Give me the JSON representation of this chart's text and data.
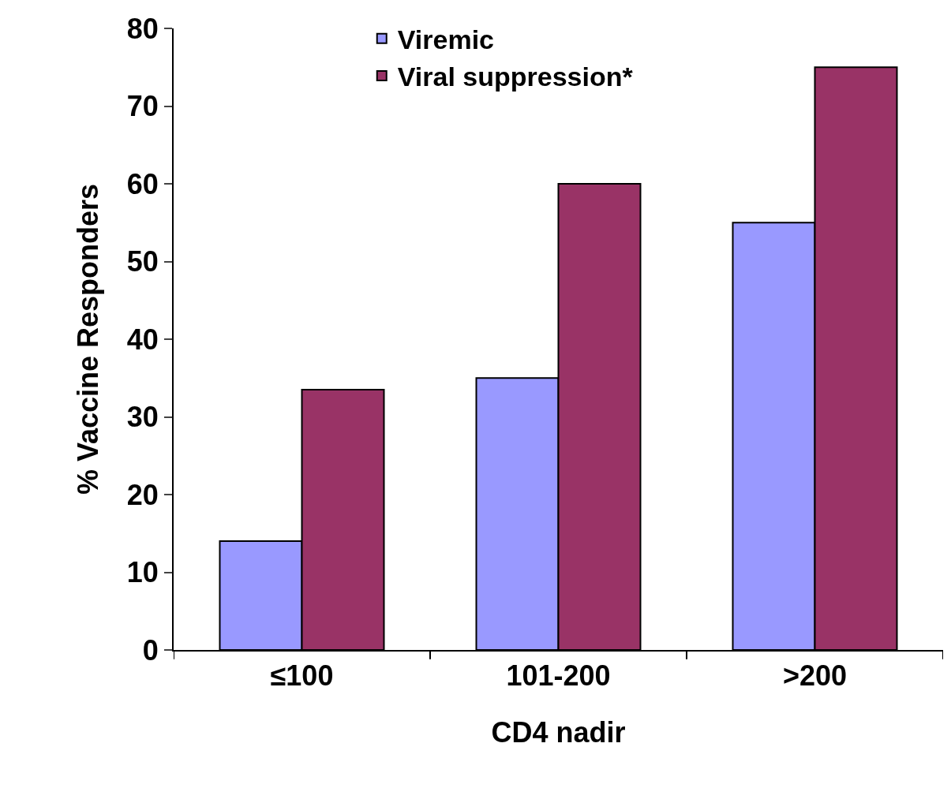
{
  "chart_data": {
    "type": "bar",
    "xlabel": "CD4 nadir",
    "ylabel": "% Vaccine Responders",
    "categories": [
      "≤100",
      "101-200",
      ">200"
    ],
    "series": [
      {
        "name": "Viremic",
        "color": "#9999ff",
        "values": [
          14,
          35,
          55
        ]
      },
      {
        "name": "Viral suppression*",
        "color": "#993366",
        "values": [
          33.5,
          60,
          75
        ]
      }
    ],
    "ylim": [
      0,
      80
    ],
    "yticks": [
      0,
      10,
      20,
      30,
      40,
      50,
      60,
      70,
      80
    ],
    "legend": "top"
  }
}
